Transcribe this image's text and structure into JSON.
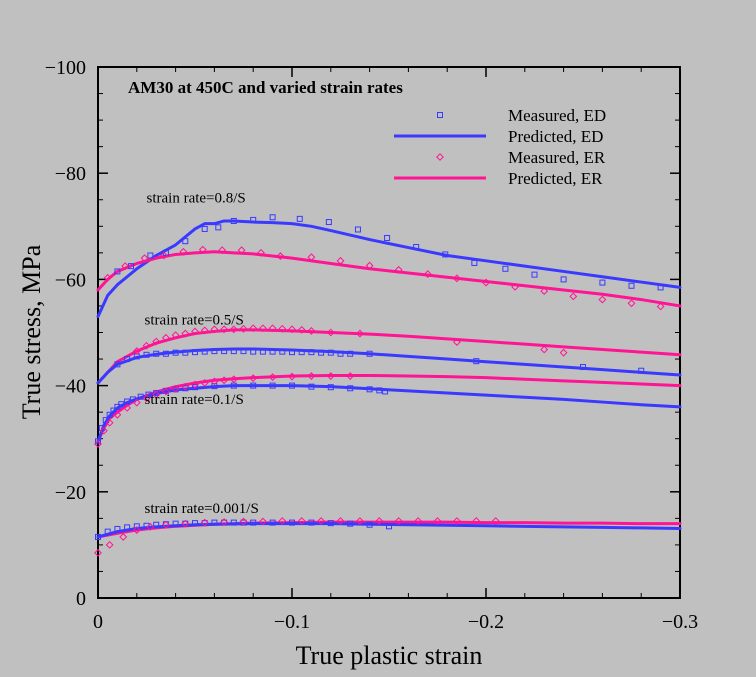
{
  "chart_data": {
    "type": "scatter",
    "title": "AM30 at 450C and varied strain rates",
    "xlabel": "True plastic strain",
    "ylabel": "True stress, MPa",
    "xlim": [
      0,
      -0.3
    ],
    "ylim": [
      0,
      -100
    ],
    "xticks": [
      0,
      -0.1,
      -0.2,
      -0.3
    ],
    "xtick_labels": [
      "0",
      "−0.1",
      "−0.2",
      "−0.3"
    ],
    "yticks": [
      0,
      -20,
      -40,
      -60,
      -80,
      -100
    ],
    "ytick_labels": [
      "0",
      "−20",
      "−40",
      "−60",
      "−80",
      "−100"
    ],
    "grid": false,
    "legend": [
      {
        "label": "Measured, ED",
        "kind": "marker-square",
        "color": "#3a3aff"
      },
      {
        "label": "Predicted, ED",
        "kind": "line",
        "color": "#3a3aff"
      },
      {
        "label": "Measured, ER",
        "kind": "marker-diamond",
        "color": "#ff1493"
      },
      {
        "label": "Predicted, ER",
        "kind": "line",
        "color": "#ff1493"
      }
    ],
    "annotations": [
      {
        "text": "strain rate=0.8/S",
        "x": -0.025,
        "y": -74.5
      },
      {
        "text": "strain rate=0.5/S",
        "x": -0.024,
        "y": -51.5
      },
      {
        "text": "strain rate=0.1/S",
        "x": -0.024,
        "y": -36.5
      },
      {
        "text": "strain rate=0.001/S",
        "x": -0.024,
        "y": -16.0
      }
    ],
    "series": [
      {
        "name": "Predicted, ED (0.8/S)",
        "kind": "line",
        "color": "#3a3aff",
        "x": [
          0,
          -0.005,
          -0.01,
          -0.02,
          -0.03,
          -0.04,
          -0.05,
          -0.055,
          -0.06,
          -0.065,
          -0.07,
          -0.08,
          -0.09,
          -0.1,
          -0.11,
          -0.12,
          -0.14,
          -0.16,
          -0.18,
          -0.2,
          -0.22,
          -0.24,
          -0.26,
          -0.28,
          -0.3
        ],
        "y": [
          -53,
          -57,
          -59,
          -62,
          -64.5,
          -66.5,
          -69.5,
          -70.5,
          -70.5,
          -71,
          -71,
          -70.8,
          -70.7,
          -70.5,
          -70,
          -69.2,
          -67.5,
          -66,
          -64.5,
          -63.5,
          -62.5,
          -61.5,
          -60.5,
          -59.5,
          -58.5
        ]
      },
      {
        "name": "Predicted, ER (0.8/S)",
        "kind": "line",
        "color": "#ff1493",
        "x": [
          0,
          -0.005,
          -0.01,
          -0.02,
          -0.03,
          -0.04,
          -0.05,
          -0.06,
          -0.07,
          -0.08,
          -0.1,
          -0.12,
          -0.14,
          -0.16,
          -0.18,
          -0.2,
          -0.22,
          -0.24,
          -0.26,
          -0.28,
          -0.3
        ],
        "y": [
          -58,
          -60,
          -61.5,
          -63,
          -64,
          -64.7,
          -65,
          -65.2,
          -65,
          -64.8,
          -64,
          -63,
          -62,
          -61.2,
          -60.4,
          -59.6,
          -58.8,
          -58,
          -57.2,
          -56.2,
          -55
        ]
      },
      {
        "name": "Measured, ED (0.8/S)",
        "kind": "marker-square",
        "color": "#3a3aff",
        "x": [
          -0.01,
          -0.017,
          -0.027,
          -0.035,
          -0.045,
          -0.055,
          -0.062,
          -0.07,
          -0.08,
          -0.09,
          -0.104,
          -0.119,
          -0.134,
          -0.149,
          -0.164,
          -0.179,
          -0.194,
          -0.21,
          -0.225,
          -0.24,
          -0.26,
          -0.275,
          -0.29
        ],
        "y": [
          -61.5,
          -62.5,
          -64.5,
          -65,
          -67.2,
          -69.5,
          -69.8,
          -71,
          -71.2,
          -71.7,
          -71.4,
          -70.8,
          -69.4,
          -67.8,
          -66.1,
          -64.7,
          -63.1,
          -62,
          -60.9,
          -60,
          -59.4,
          -58.8,
          -58.5
        ]
      },
      {
        "name": "Measured, ER (0.8/S)",
        "kind": "marker-diamond",
        "color": "#ff1493",
        "x": [
          -0.005,
          -0.014,
          -0.024,
          -0.034,
          -0.044,
          -0.054,
          -0.064,
          -0.074,
          -0.084,
          -0.094,
          -0.11,
          -0.125,
          -0.14,
          -0.155,
          -0.17,
          -0.185,
          -0.2,
          -0.215,
          -0.23,
          -0.245,
          -0.26,
          -0.275,
          -0.29
        ],
        "y": [
          -60.3,
          -62.5,
          -64,
          -64.5,
          -65.2,
          -65.6,
          -65.5,
          -65.5,
          -65,
          -64.4,
          -64.2,
          -63.5,
          -62.6,
          -61.8,
          -61,
          -60.2,
          -59.4,
          -58.6,
          -57.8,
          -56.8,
          -56.2,
          -55.5,
          -54.9
        ]
      },
      {
        "name": "Predicted, ER (0.5/S)",
        "kind": "line",
        "color": "#ff1493",
        "x": [
          0,
          -0.005,
          -0.01,
          -0.02,
          -0.03,
          -0.04,
          -0.05,
          -0.06,
          -0.07,
          -0.08,
          -0.1,
          -0.12,
          -0.14,
          -0.16,
          -0.18,
          -0.2,
          -0.22,
          -0.24,
          -0.26,
          -0.28,
          -0.3
        ],
        "y": [
          -40.5,
          -42.5,
          -44.5,
          -46.5,
          -48,
          -49,
          -49.8,
          -50.2,
          -50.5,
          -50.5,
          -50.3,
          -50,
          -49.7,
          -49.3,
          -48.8,
          -48.3,
          -47.8,
          -47.3,
          -46.8,
          -46.3,
          -45.8
        ]
      },
      {
        "name": "Predicted, ED (0.5/S)",
        "kind": "line",
        "color": "#3a3aff",
        "x": [
          0,
          -0.005,
          -0.01,
          -0.02,
          -0.03,
          -0.04,
          -0.05,
          -0.06,
          -0.07,
          -0.08,
          -0.1,
          -0.12,
          -0.14,
          -0.16,
          -0.18,
          -0.2,
          -0.22,
          -0.24,
          -0.26,
          -0.28,
          -0.3
        ],
        "y": [
          -40.5,
          -42.5,
          -44,
          -45.3,
          -45.9,
          -46.3,
          -46.6,
          -46.8,
          -46.9,
          -46.9,
          -46.7,
          -46.4,
          -46,
          -45.5,
          -45,
          -44.5,
          -44,
          -43.5,
          -43,
          -42.5,
          -42
        ]
      },
      {
        "name": "Measured, ED (0.5/S)",
        "kind": "marker-square",
        "color": "#3a3aff",
        "x": [
          -0.01,
          -0.015,
          -0.02,
          -0.025,
          -0.03,
          -0.035,
          -0.04,
          -0.045,
          -0.05,
          -0.055,
          -0.06,
          -0.065,
          -0.07,
          -0.075,
          -0.08,
          -0.085,
          -0.09,
          -0.095,
          -0.1,
          -0.105,
          -0.11,
          -0.115,
          -0.12,
          -0.125,
          -0.13,
          -0.14,
          -0.195,
          -0.25,
          -0.28
        ],
        "y": [
          -44,
          -45,
          -45.5,
          -45.8,
          -46,
          -46,
          -46.2,
          -46.2,
          -46.3,
          -46.4,
          -46.5,
          -46.5,
          -46.5,
          -46.5,
          -46.4,
          -46.4,
          -46.4,
          -46.4,
          -46.3,
          -46.3,
          -46.3,
          -46.2,
          -46.2,
          -46,
          -46,
          -46,
          -44.6,
          -43.5,
          -42.8
        ]
      },
      {
        "name": "Measured, ER (0.5/S)",
        "kind": "marker-diamond",
        "color": "#ff1493",
        "x": [
          -0.02,
          -0.025,
          -0.03,
          -0.035,
          -0.04,
          -0.045,
          -0.05,
          -0.055,
          -0.06,
          -0.065,
          -0.07,
          -0.075,
          -0.08,
          -0.085,
          -0.09,
          -0.095,
          -0.1,
          -0.105,
          -0.11,
          -0.12,
          -0.135,
          -0.185,
          -0.23,
          -0.24
        ],
        "y": [
          -46.5,
          -47.5,
          -48.3,
          -49,
          -49.5,
          -49.8,
          -50.2,
          -50.4,
          -50.6,
          -50.6,
          -50.6,
          -50.7,
          -50.8,
          -50.8,
          -50.8,
          -50.7,
          -50.6,
          -50.5,
          -50.3,
          -50,
          -49.8,
          -48.2,
          -46.8,
          -46.2
        ]
      },
      {
        "name": "Predicted, ER (0.1/S)",
        "kind": "line",
        "color": "#ff1493",
        "x": [
          0,
          -0.003,
          -0.006,
          -0.01,
          -0.015,
          -0.02,
          -0.03,
          -0.04,
          -0.05,
          -0.06,
          -0.07,
          -0.08,
          -0.1,
          -0.12,
          -0.14,
          -0.16,
          -0.18,
          -0.2,
          -0.22,
          -0.24,
          -0.26,
          -0.28,
          -0.3
        ],
        "y": [
          -29.5,
          -32,
          -33.8,
          -35,
          -36.3,
          -37.4,
          -38.8,
          -39.8,
          -40.5,
          -41,
          -41.3,
          -41.5,
          -41.8,
          -41.9,
          -41.9,
          -41.8,
          -41.7,
          -41.5,
          -41.2,
          -40.9,
          -40.6,
          -40.3,
          -40
        ]
      },
      {
        "name": "Predicted, ED (0.1/S)",
        "kind": "line",
        "color": "#3a3aff",
        "x": [
          0,
          -0.003,
          -0.006,
          -0.01,
          -0.015,
          -0.02,
          -0.03,
          -0.04,
          -0.05,
          -0.06,
          -0.07,
          -0.08,
          -0.1,
          -0.12,
          -0.14,
          -0.16,
          -0.18,
          -0.2,
          -0.22,
          -0.24,
          -0.26,
          -0.28,
          -0.3
        ],
        "y": [
          -29.5,
          -32.5,
          -34.3,
          -35.8,
          -36.8,
          -37.5,
          -38.5,
          -39.2,
          -39.5,
          -39.8,
          -40,
          -40,
          -40,
          -39.8,
          -39.4,
          -39,
          -38.6,
          -38.2,
          -37.8,
          -37.4,
          -36.9,
          -36.4,
          -36
        ]
      },
      {
        "name": "Measured, ED (0.1/S)",
        "kind": "marker-square",
        "color": "#3a3aff",
        "x": [
          0,
          -0.002,
          -0.004,
          -0.006,
          -0.008,
          -0.01,
          -0.012,
          -0.015,
          -0.018,
          -0.022,
          -0.026,
          -0.03,
          -0.035,
          -0.04,
          -0.045,
          -0.05,
          -0.06,
          -0.07,
          -0.08,
          -0.09,
          -0.1,
          -0.11,
          -0.12,
          -0.13,
          -0.14,
          -0.145,
          -0.148
        ],
        "y": [
          -29.5,
          -32,
          -33.5,
          -34.5,
          -35.3,
          -36,
          -36.5,
          -37,
          -37.4,
          -37.9,
          -38.3,
          -38.6,
          -39,
          -39.3,
          -39.5,
          -39.7,
          -39.9,
          -40,
          -40,
          -40,
          -40,
          -39.8,
          -39.7,
          -39.5,
          -39.3,
          -39.1,
          -38.9
        ]
      },
      {
        "name": "Measured, ER (0.1/S)",
        "kind": "marker-diamond",
        "color": "#ff1493",
        "x": [
          0,
          -0.003,
          -0.006,
          -0.01,
          -0.015,
          -0.02,
          -0.025,
          -0.03,
          -0.035,
          -0.04,
          -0.045,
          -0.05,
          -0.055,
          -0.06,
          -0.065,
          -0.07,
          -0.08,
          -0.09,
          -0.1,
          -0.11,
          -0.12,
          -0.13
        ],
        "y": [
          -29,
          -31.5,
          -33,
          -34.5,
          -35.8,
          -36.8,
          -37.6,
          -38.3,
          -38.9,
          -39.4,
          -39.8,
          -40.2,
          -40.5,
          -40.8,
          -41,
          -41.2,
          -41.4,
          -41.6,
          -41.7,
          -41.8,
          -41.8,
          -41.8
        ]
      },
      {
        "name": "Predicted, ER (0.001/S)",
        "kind": "line",
        "color": "#ff1493",
        "x": [
          0,
          -0.01,
          -0.02,
          -0.03,
          -0.04,
          -0.05,
          -0.06,
          -0.08,
          -0.1,
          -0.12,
          -0.14,
          -0.16,
          -0.18,
          -0.2,
          -0.22,
          -0.24,
          -0.26,
          -0.28,
          -0.3
        ],
        "y": [
          -11.5,
          -12.2,
          -12.8,
          -13.2,
          -13.5,
          -13.7,
          -13.9,
          -14.1,
          -14.2,
          -14.3,
          -14.3,
          -14.3,
          -14.3,
          -14.2,
          -14.2,
          -14.1,
          -14.1,
          -14,
          -14
        ]
      },
      {
        "name": "Predicted, ED (0.001/S)",
        "kind": "line",
        "color": "#3a3aff",
        "x": [
          0,
          -0.01,
          -0.02,
          -0.03,
          -0.04,
          -0.05,
          -0.06,
          -0.08,
          -0.1,
          -0.12,
          -0.14,
          -0.16,
          -0.18,
          -0.2,
          -0.22,
          -0.24,
          -0.26,
          -0.28,
          -0.3
        ],
        "y": [
          -11.5,
          -12.5,
          -13.1,
          -13.4,
          -13.6,
          -13.8,
          -13.9,
          -14,
          -14,
          -14,
          -13.9,
          -13.8,
          -13.7,
          -13.6,
          -13.5,
          -13.4,
          -13.3,
          -13.2,
          -13.1
        ]
      },
      {
        "name": "Measured, ED (0.001/S)",
        "kind": "marker-square",
        "color": "#3a3aff",
        "x": [
          0,
          -0.005,
          -0.01,
          -0.015,
          -0.02,
          -0.025,
          -0.03,
          -0.035,
          -0.04,
          -0.045,
          -0.05,
          -0.055,
          -0.06,
          -0.065,
          -0.07,
          -0.075,
          -0.08,
          -0.09,
          -0.1,
          -0.11,
          -0.12,
          -0.13,
          -0.14,
          -0.15
        ],
        "y": [
          -11.5,
          -12.5,
          -13,
          -13.3,
          -13.5,
          -13.6,
          -13.8,
          -13.9,
          -14,
          -14,
          -14.1,
          -14.1,
          -14.2,
          -14.2,
          -14.2,
          -14.2,
          -14.2,
          -14.2,
          -14.2,
          -14.2,
          -14.1,
          -14,
          -13.8,
          -13.5
        ]
      },
      {
        "name": "Measured, ER (0.001/S)",
        "kind": "marker-diamond",
        "color": "#ff1493",
        "x": [
          0,
          -0.006,
          -0.013,
          -0.02,
          -0.027,
          -0.035,
          -0.045,
          -0.055,
          -0.065,
          -0.075,
          -0.085,
          -0.095,
          -0.105,
          -0.115,
          -0.125,
          -0.135,
          -0.145,
          -0.155,
          -0.165,
          -0.175,
          -0.185,
          -0.195,
          -0.205
        ],
        "y": [
          -8.5,
          -10,
          -11.5,
          -12.8,
          -13.4,
          -13.8,
          -14,
          -14.2,
          -14.3,
          -14.4,
          -14.4,
          -14.5,
          -14.5,
          -14.5,
          -14.5,
          -14.5,
          -14.5,
          -14.5,
          -14.5,
          -14.5,
          -14.5,
          -14.5,
          -14.5
        ]
      }
    ]
  }
}
